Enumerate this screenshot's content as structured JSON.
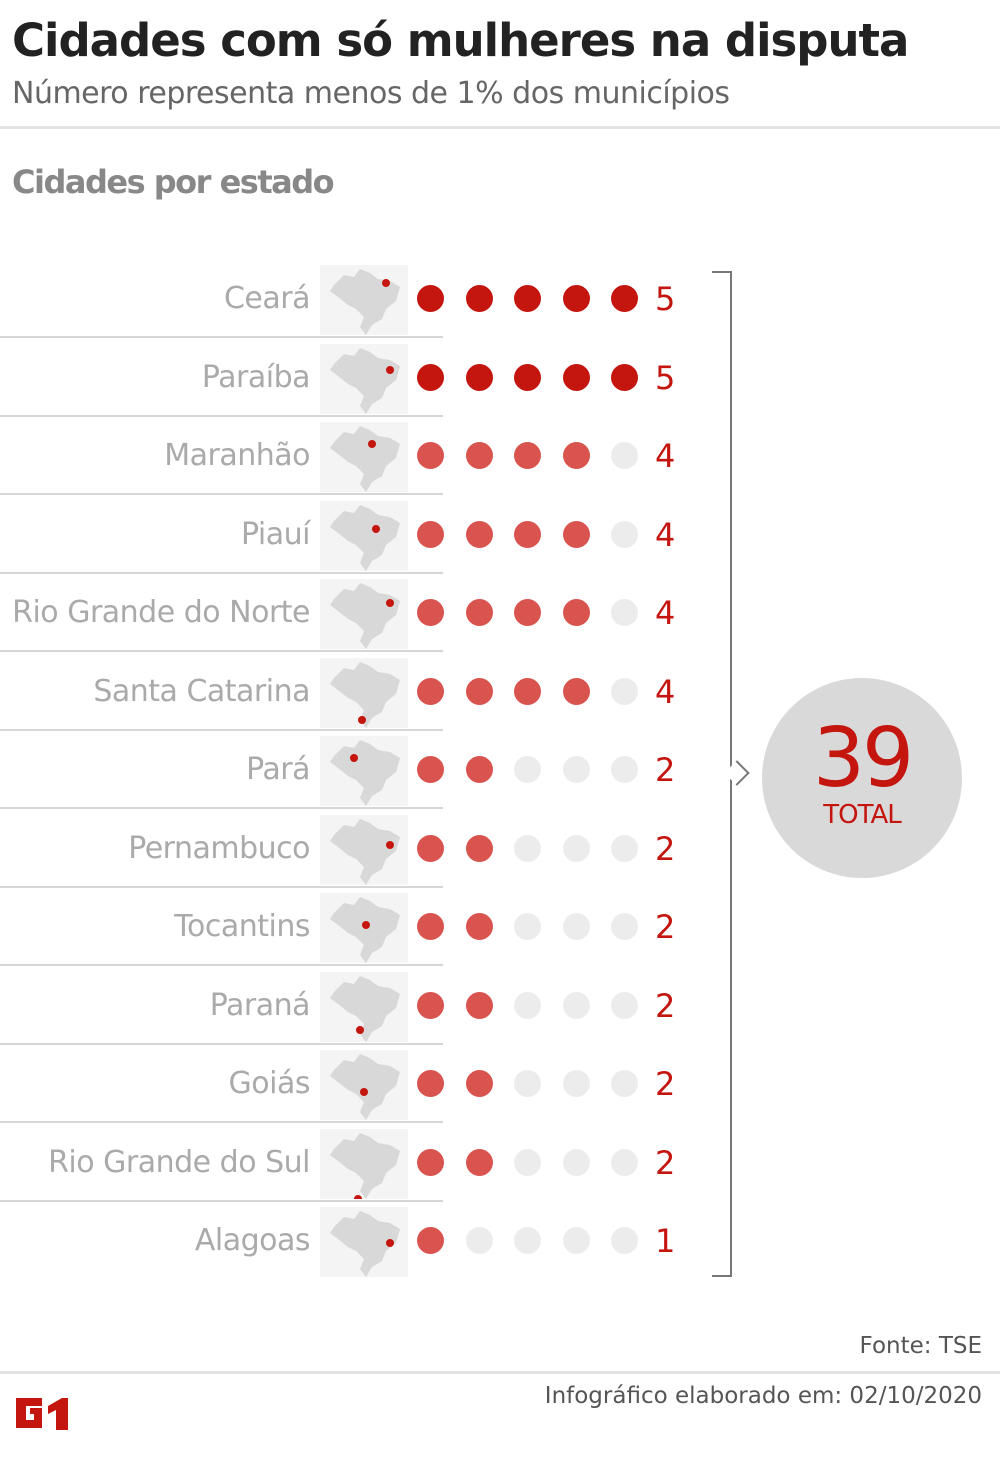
{
  "header": {
    "title": "Cidades com só mulheres na disputa",
    "subtitle": "Número representa menos de 1% dos municípios"
  },
  "section_title": "Cidades por estado",
  "chart_data": {
    "type": "dot",
    "title": "Cidades por estado",
    "max_dots": 5,
    "categories": [
      "Ceará",
      "Paraíba",
      "Maranhão",
      "Piauí",
      "Rio Grande do Norte",
      "Santa Catarina",
      "Pará",
      "Pernambuco",
      "Tocantins",
      "Paraná",
      "Goiás",
      "Rio Grande do Sul",
      "Alagoas"
    ],
    "values": [
      5,
      5,
      4,
      4,
      4,
      4,
      2,
      2,
      2,
      2,
      2,
      2,
      1
    ],
    "total": 39,
    "total_label": "TOTAL",
    "colors": {
      "five": "#c4150f",
      "other": "#d9534f",
      "empty": "#ececec",
      "map": "#d8d8d8",
      "highlight": "#c4150f"
    }
  },
  "footer": {
    "source": "Fonte: TSE",
    "date": "Infográfico elaborado em: 02/10/2020",
    "logo": "G1"
  }
}
